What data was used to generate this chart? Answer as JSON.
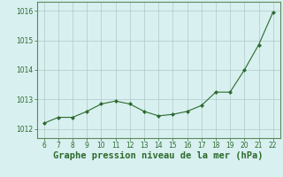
{
  "x": [
    6,
    7,
    8,
    9,
    10,
    11,
    12,
    13,
    14,
    15,
    16,
    17,
    18,
    19,
    20,
    21,
    22
  ],
  "y": [
    1012.2,
    1012.4,
    1012.4,
    1012.6,
    1012.85,
    1012.95,
    1012.85,
    1012.6,
    1012.45,
    1012.5,
    1012.6,
    1012.8,
    1013.25,
    1013.25,
    1014.0,
    1014.85,
    1015.95
  ],
  "line_color": "#2d6a2d",
  "marker": "D",
  "marker_size": 2.0,
  "background_color": "#d8f0f0",
  "grid_color": "#b0c8c8",
  "xlabel": "Graphe pression niveau de la mer (hPa)",
  "xlabel_color": "#2d6a2d",
  "xlabel_fontsize": 7.5,
  "tick_color": "#2d6a2d",
  "tick_fontsize": 5.5,
  "ylim": [
    1011.7,
    1016.3
  ],
  "yticks": [
    1012,
    1013,
    1014,
    1015,
    1016
  ],
  "xlim": [
    5.5,
    22.5
  ],
  "xticks": [
    6,
    7,
    8,
    9,
    10,
    11,
    12,
    13,
    14,
    15,
    16,
    17,
    18,
    19,
    20,
    21,
    22
  ]
}
